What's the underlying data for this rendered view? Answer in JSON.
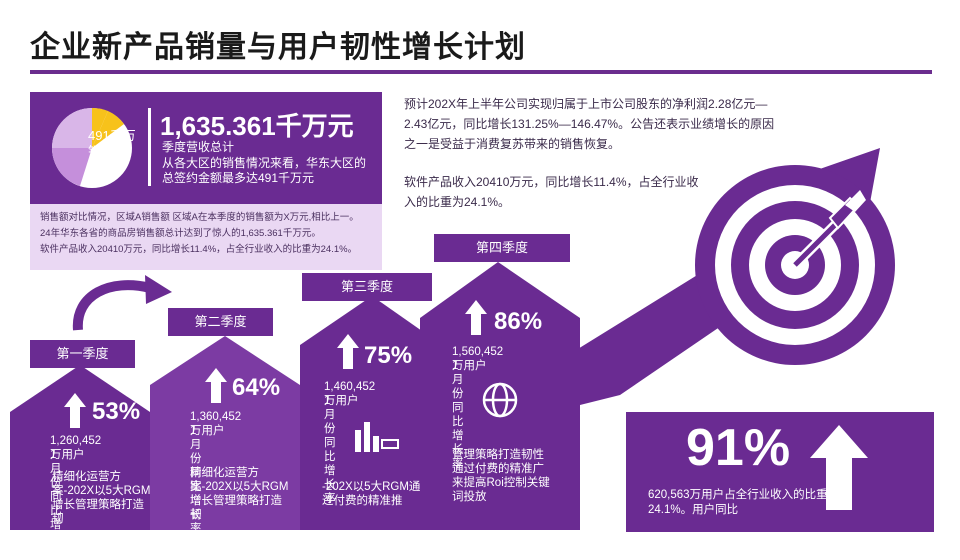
{
  "title": "企业新产品销量与用户韧性增长计划",
  "colors": {
    "primary": "#6a2b92",
    "light": "#ead8f3",
    "accent": "#f7c21b"
  },
  "card": {
    "pie_label": "491千万销冠",
    "big_number": "1,635.361千万元",
    "subtitle": "季度营收总计",
    "description": "从各大区的销售情况来看，华东大区的总签约金额最多达491千万元"
  },
  "note": {
    "line1": "销售额对比情况，区域A销售额 区域A在本季度的销售额为X万元,相比上一。",
    "line2": "24年华东各省的商品房销售额总计达到了惊人的1,635.361千万元。",
    "line3": "软件产品收入20410万元，同比增长11.4%，占全行业收入的比重为24.1%。"
  },
  "right": {
    "para1": "预计202X年上半年公司实现归属于上市公司股东的净利润2.28亿元—2.43亿元，同比增长131.25%—146.47%。公告还表示业绩增长的原因之一是受益于消费复苏带来的销售恢复。",
    "para2": "软件产品收入20410万元，同比增长11.4%，占全行业收入的比重为24.1%。"
  },
  "stages": [
    {
      "label": "第一季度",
      "pct": "53%",
      "users": "1,260,452万用户",
      "growth": "1月份同比增长率",
      "desc": "精细化运营方案-202X以5大RGM增长管理策略打造韧"
    },
    {
      "label": "第二季度",
      "pct": "64%",
      "users": "1,360,452万用户",
      "growth": "1月份同比增长率",
      "desc": "精细化运营方案-202X以5大RGM增长管理策略打造韧"
    },
    {
      "label": "第三季度",
      "pct": "75%",
      "users": "1,460,452万用户",
      "growth": "1月份同比增长率",
      "desc": "-202X以5大RGM通过付费的精准推"
    },
    {
      "label": "第四季度",
      "pct": "86%",
      "users": "1,560,452万用户",
      "growth": "1月份同比增长率",
      "desc": "管理策略打造韧性通过付费的精准广来提高Roi控制关键词投放"
    }
  ],
  "final": {
    "pct": "91%",
    "desc": "620,563万用户占全行业收入的比重为24.1%。用户同比"
  },
  "icons": [
    "target-icon",
    "up-arrow-icon",
    "bar-chart-icon",
    "globe-refresh-icon",
    "curved-arrow-icon"
  ]
}
